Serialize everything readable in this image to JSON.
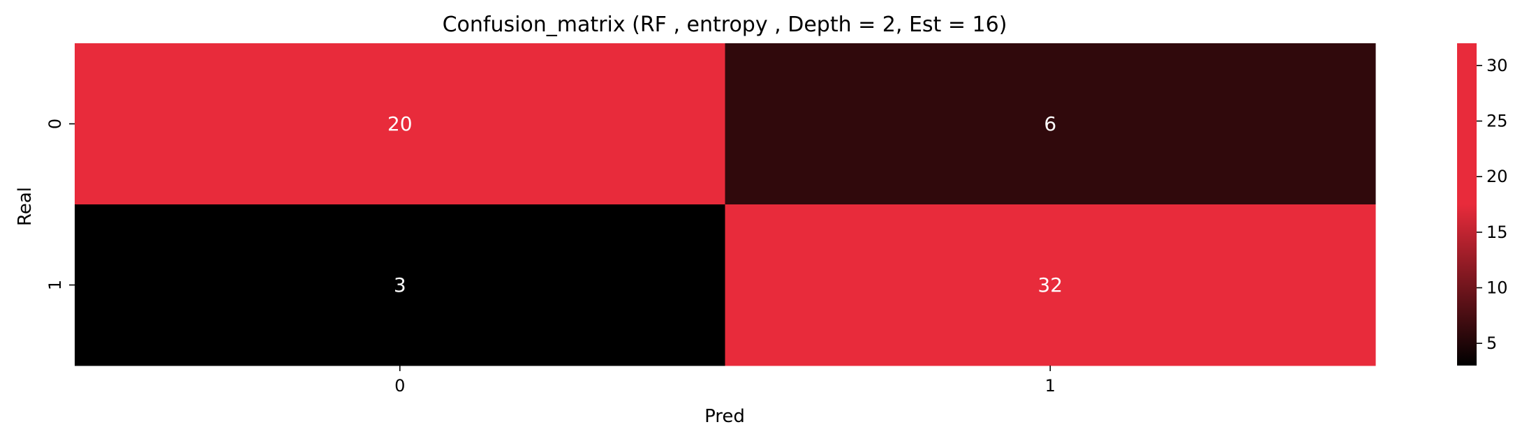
{
  "chart_data": {
    "type": "heatmap",
    "title": "Confusion_matrix (RF , entropy , Depth = 2, Est = 16)",
    "xlabel": "Pred",
    "ylabel": "Real",
    "x_categories": [
      "0",
      "1"
    ],
    "y_categories": [
      "0",
      "1"
    ],
    "values": [
      [
        20,
        6
      ],
      [
        3,
        32
      ]
    ],
    "colorbar": {
      "min": 3,
      "max": 32,
      "ticks": [
        5,
        10,
        15,
        20,
        25,
        30
      ],
      "tick_labels": [
        "5",
        "10",
        "15",
        "20",
        "25",
        "30"
      ],
      "colormap": [
        "#000000",
        "#e82b3b"
      ]
    },
    "grid": false,
    "annotations": true
  }
}
